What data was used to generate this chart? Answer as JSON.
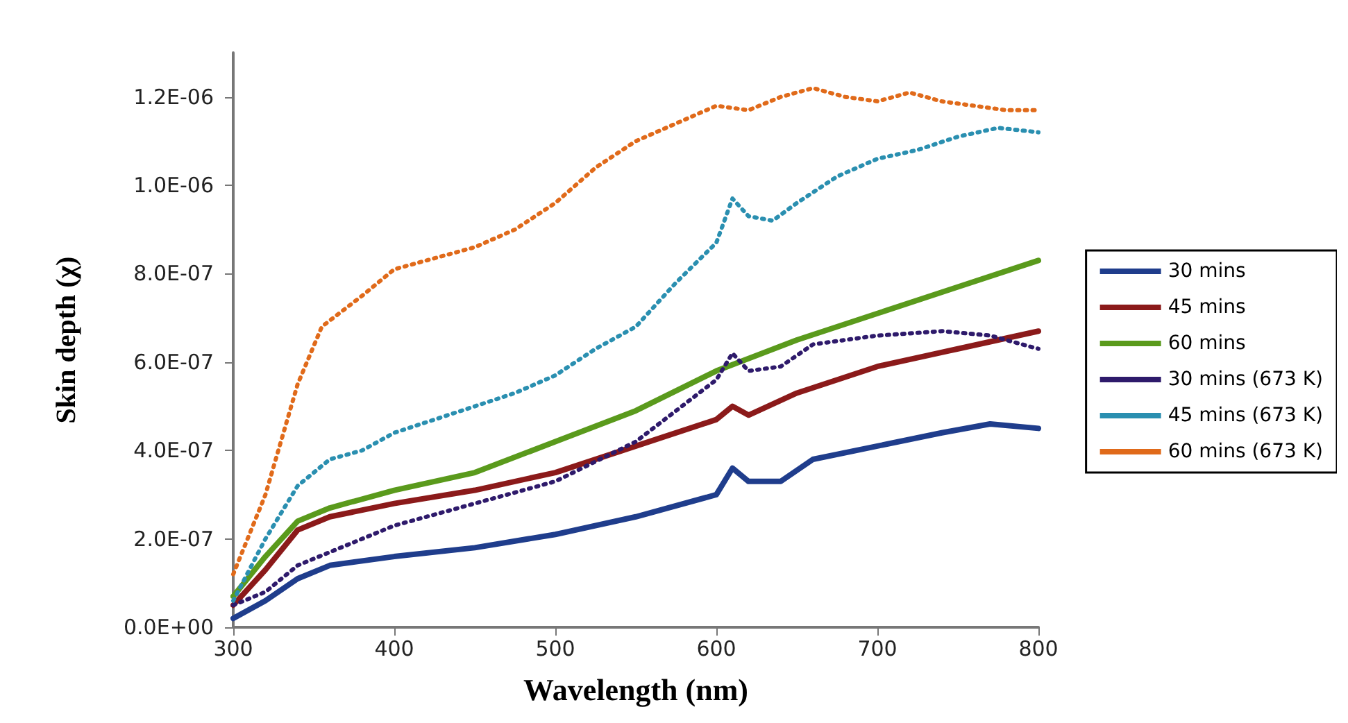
{
  "chart_data": {
    "type": "line",
    "xlabel": "Wavelength (nm)",
    "ylabel": "Skin depth (χ)",
    "xlim": [
      300,
      800
    ],
    "xticks": [
      300,
      400,
      500,
      600,
      700,
      800
    ],
    "ylim": [
      0,
      1.3e-06
    ],
    "yticks": [
      {
        "value": 0,
        "label": "0.0E+00"
      },
      {
        "value": 2e-07,
        "label": "2.0E-07"
      },
      {
        "value": 4e-07,
        "label": "4.0E-07"
      },
      {
        "value": 6e-07,
        "label": "6.0E-07"
      },
      {
        "value": 8e-07,
        "label": "8.0E-07"
      },
      {
        "value": 1e-06,
        "label": "1.0E-06"
      },
      {
        "value": 1.2e-06,
        "label": "1.2E-06"
      }
    ],
    "grid": false,
    "legend": "right",
    "marker": "none",
    "series": [
      {
        "name": "30 mins",
        "color": "#1f3d8c",
        "line_style": "solid",
        "x": [
          300,
          320,
          340,
          360,
          400,
          450,
          500,
          550,
          600,
          610,
          620,
          640,
          660,
          700,
          740,
          770,
          800
        ],
        "values": [
          2e-08,
          6e-08,
          1.1e-07,
          1.4e-07,
          1.6e-07,
          1.8e-07,
          2.1e-07,
          2.5e-07,
          3e-07,
          3.6e-07,
          3.3e-07,
          3.3e-07,
          3.8e-07,
          4.1e-07,
          4.4e-07,
          4.6e-07,
          4.5e-07
        ]
      },
      {
        "name": "45 mins",
        "color": "#8b1a1a",
        "line_style": "solid",
        "x": [
          300,
          320,
          340,
          360,
          400,
          450,
          500,
          550,
          600,
          610,
          620,
          650,
          700,
          750,
          800
        ],
        "values": [
          5e-08,
          1.3e-07,
          2.2e-07,
          2.5e-07,
          2.8e-07,
          3.1e-07,
          3.5e-07,
          4.1e-07,
          4.7e-07,
          5e-07,
          4.8e-07,
          5.3e-07,
          5.9e-07,
          6.3e-07,
          6.7e-07
        ]
      },
      {
        "name": "60 mins",
        "color": "#5a9a1c",
        "line_style": "solid",
        "x": [
          300,
          320,
          340,
          360,
          400,
          450,
          500,
          550,
          600,
          650,
          700,
          750,
          800
        ],
        "values": [
          7e-08,
          1.6e-07,
          2.4e-07,
          2.7e-07,
          3.1e-07,
          3.5e-07,
          4.2e-07,
          4.9e-07,
          5.8e-07,
          6.5e-07,
          7.1e-07,
          7.7e-07,
          8.3e-07
        ]
      },
      {
        "name": "30 mins (673 K)",
        "color": "#2e1a6b",
        "line_style": "dotted",
        "x": [
          300,
          320,
          340,
          360,
          400,
          450,
          500,
          550,
          600,
          610,
          620,
          640,
          660,
          700,
          740,
          770,
          800
        ],
        "values": [
          5e-08,
          8e-08,
          1.4e-07,
          1.7e-07,
          2.3e-07,
          2.8e-07,
          3.3e-07,
          4.2e-07,
          5.6e-07,
          6.2e-07,
          5.8e-07,
          5.9e-07,
          6.4e-07,
          6.6e-07,
          6.7e-07,
          6.6e-07,
          6.3e-07
        ]
      },
      {
        "name": "45 mins (673 K)",
        "color": "#2a8fb0",
        "line_style": "dotted",
        "x": [
          300,
          320,
          340,
          360,
          380,
          400,
          425,
          450,
          475,
          500,
          525,
          550,
          575,
          600,
          610,
          620,
          635,
          650,
          675,
          700,
          725,
          750,
          775,
          800
        ],
        "values": [
          6e-08,
          2e-07,
          3.2e-07,
          3.8e-07,
          4e-07,
          4.4e-07,
          4.7e-07,
          5e-07,
          5.3e-07,
          5.7e-07,
          6.3e-07,
          6.8e-07,
          7.8e-07,
          8.7e-07,
          9.7e-07,
          9.3e-07,
          9.2e-07,
          9.6e-07,
          1.02e-06,
          1.06e-06,
          1.08e-06,
          1.11e-06,
          1.13e-06,
          1.12e-06
        ]
      },
      {
        "name": "60 mins (673 K)",
        "color": "#e06a1a",
        "line_style": "dotted",
        "x": [
          300,
          320,
          340,
          355,
          380,
          400,
          420,
          450,
          475,
          500,
          525,
          550,
          575,
          600,
          620,
          640,
          660,
          680,
          700,
          720,
          740,
          760,
          780,
          800
        ],
        "values": [
          1.2e-07,
          3e-07,
          5.5e-07,
          6.8e-07,
          7.5e-07,
          8.1e-07,
          8.3e-07,
          8.6e-07,
          9e-07,
          9.6e-07,
          1.04e-06,
          1.1e-06,
          1.14e-06,
          1.18e-06,
          1.17e-06,
          1.2e-06,
          1.22e-06,
          1.2e-06,
          1.19e-06,
          1.21e-06,
          1.19e-06,
          1.18e-06,
          1.17e-06,
          1.17e-06
        ]
      }
    ]
  }
}
